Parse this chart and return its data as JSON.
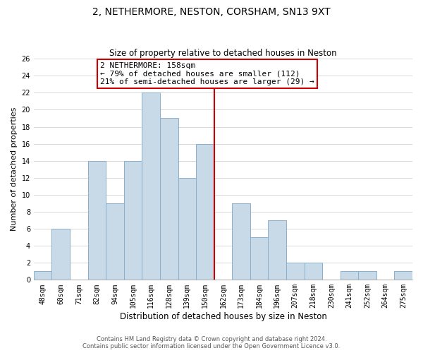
{
  "title": "2, NETHERMORE, NESTON, CORSHAM, SN13 9XT",
  "subtitle": "Size of property relative to detached houses in Neston",
  "xlabel": "Distribution of detached houses by size in Neston",
  "ylabel": "Number of detached properties",
  "bin_labels": [
    "48sqm",
    "60sqm",
    "71sqm",
    "82sqm",
    "94sqm",
    "105sqm",
    "116sqm",
    "128sqm",
    "139sqm",
    "150sqm",
    "162sqm",
    "173sqm",
    "184sqm",
    "196sqm",
    "207sqm",
    "218sqm",
    "230sqm",
    "241sqm",
    "252sqm",
    "264sqm",
    "275sqm"
  ],
  "bar_heights": [
    1,
    6,
    0,
    14,
    9,
    14,
    22,
    19,
    12,
    16,
    0,
    9,
    5,
    7,
    2,
    2,
    0,
    1,
    1,
    0,
    1
  ],
  "bar_color": "#c8d9e8",
  "bar_edgecolor": "#8ab0cc",
  "marker_label": "2 NETHERMORE: 158sqm",
  "marker_sublabel1": "← 79% of detached houses are smaller (112)",
  "marker_sublabel2": "21% of semi-detached houses are larger (29) →",
  "annotation_box_color": "#ffffff",
  "annotation_box_edgecolor": "#cc0000",
  "marker_line_color": "#cc0000",
  "ylim": [
    0,
    26
  ],
  "yticks": [
    0,
    2,
    4,
    6,
    8,
    10,
    12,
    14,
    16,
    18,
    20,
    22,
    24,
    26
  ],
  "footer_line1": "Contains HM Land Registry data © Crown copyright and database right 2024.",
  "footer_line2": "Contains public sector information licensed under the Open Government Licence v3.0.",
  "title_fontsize": 10,
  "subtitle_fontsize": 8.5,
  "xlabel_fontsize": 8.5,
  "ylabel_fontsize": 8,
  "tick_fontsize": 7,
  "footer_fontsize": 6,
  "annotation_fontsize": 8
}
